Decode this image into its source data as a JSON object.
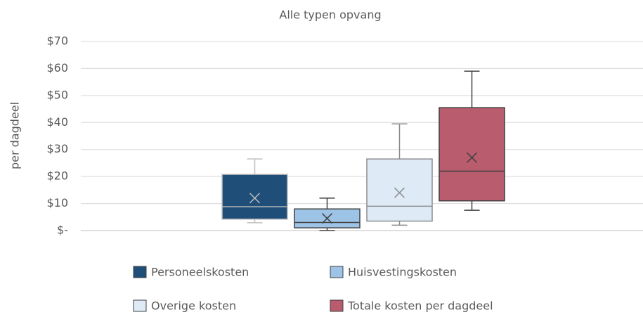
{
  "chart_data": {
    "type": "box",
    "title": "Alle typen opvang",
    "ylabel": "per dagdeel",
    "ylim": [
      0,
      70
    ],
    "yticks": [
      {
        "value": 0,
        "label": "$-"
      },
      {
        "value": 10,
        "label": "$10"
      },
      {
        "value": 20,
        "label": "$20"
      },
      {
        "value": 30,
        "label": "$30"
      },
      {
        "value": 40,
        "label": "$40"
      },
      {
        "value": 50,
        "label": "$50"
      },
      {
        "value": 60,
        "label": "$60"
      },
      {
        "value": 70,
        "label": "$70"
      }
    ],
    "grid": true,
    "series": [
      {
        "name": "Personeelskosten",
        "color": "#1f4e79",
        "edgecolor": "#bfbfbf",
        "min": 2.9,
        "q1": 4.2,
        "median": 8.8,
        "q3": 20.8,
        "max": 26.5,
        "mean": 12
      },
      {
        "name": "Huisvestingskosten",
        "color": "#9dc3e6",
        "edgecolor": "#404040",
        "min": 0,
        "q1": 1,
        "median": 3,
        "q3": 8,
        "max": 12,
        "mean": 4.5
      },
      {
        "name": "Overige kosten",
        "color": "#deebf7",
        "edgecolor": "#8c8c8c",
        "min": 2,
        "q1": 3.5,
        "median": 9,
        "q3": 26.5,
        "max": 39.5,
        "mean": 14
      },
      {
        "name": "Totale kosten per dagdeel",
        "color": "#b85c6e",
        "edgecolor": "#404040",
        "min": 7.5,
        "q1": 11,
        "median": 22,
        "q3": 45.5,
        "max": 59,
        "mean": 27
      }
    ]
  }
}
